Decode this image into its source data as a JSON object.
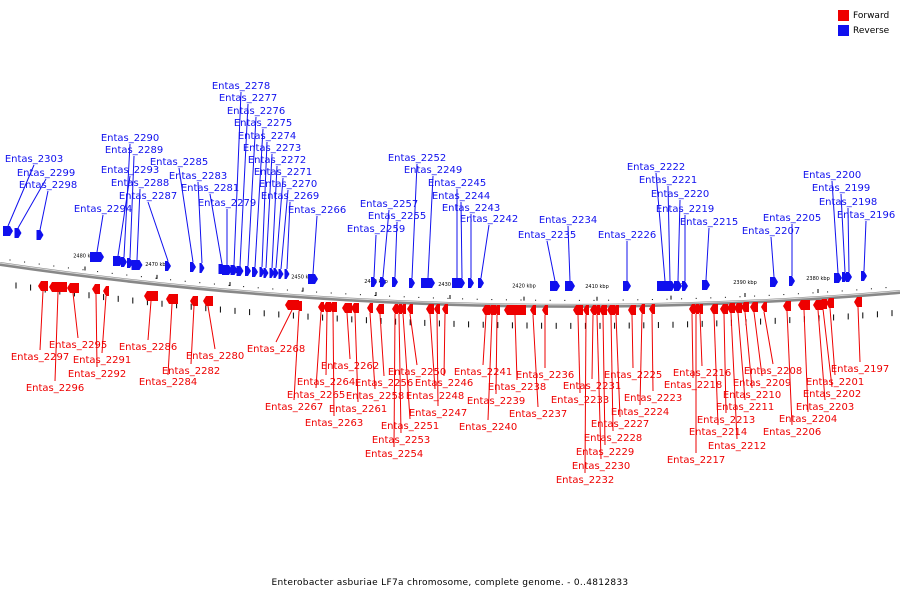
{
  "legend": {
    "forward": {
      "label": "Forward",
      "color": "#ee0000"
    },
    "reverse": {
      "label": "Reverse",
      "color": "#1010ee"
    }
  },
  "caption": "Enterobacter asburiae LF7a chromosome, complete genome. - 0..4812833",
  "axis_ticks": [
    "2480 kbp",
    "2470 kbp",
    "2460 kbp",
    "2450 kbp",
    "2440 kbp",
    "2430 kbp",
    "2420 kbp",
    "2410 kbp",
    "2400 kbp",
    "2390 kbp",
    "2380 kbp"
  ],
  "reverse_genes": [
    "Entas_2303",
    "Entas_2299",
    "Entas_2298",
    "Entas_2294",
    "Entas_2293",
    "Entas_2290",
    "Entas_2289",
    "Entas_2288",
    "Entas_2287",
    "Entas_2285",
    "Entas_2283",
    "Entas_2281",
    "Entas_2279",
    "Entas_2278",
    "Entas_2277",
    "Entas_2276",
    "Entas_2275",
    "Entas_2274",
    "Entas_2273",
    "Entas_2272",
    "Entas_2271",
    "Entas_2270",
    "Entas_2269",
    "Entas_2266",
    "Entas_2259",
    "Entas_2257",
    "Entas_2255",
    "Entas_2252",
    "Entas_2249",
    "Entas_2245",
    "Entas_2244",
    "Entas_2243",
    "Entas_2242",
    "Entas_2235",
    "Entas_2234",
    "Entas_2226",
    "Entas_2222",
    "Entas_2221",
    "Entas_2220",
    "Entas_2219",
    "Entas_2215",
    "Entas_2207",
    "Entas_2205",
    "Entas_2200",
    "Entas_2199",
    "Entas_2198",
    "Entas_2196"
  ],
  "forward_genes": [
    "Entas_2297",
    "Entas_2296",
    "Entas_2295",
    "Entas_2292",
    "Entas_2291",
    "Entas_2286",
    "Entas_2284",
    "Entas_2282",
    "Entas_2280",
    "Entas_2268",
    "Entas_2267",
    "Entas_2265",
    "Entas_2264",
    "Entas_2263",
    "Entas_2262",
    "Entas_2261",
    "Entas_2258",
    "Entas_2256",
    "Entas_2254",
    "Entas_2253",
    "Entas_2251",
    "Entas_2250",
    "Entas_2248",
    "Entas_2247",
    "Entas_2246",
    "Entas_2241",
    "Entas_2240",
    "Entas_2239",
    "Entas_2238",
    "Entas_2237",
    "Entas_2236",
    "Entas_2233",
    "Entas_2232",
    "Entas_2231",
    "Entas_2230",
    "Entas_2229",
    "Entas_2228",
    "Entas_2227",
    "Entas_2225",
    "Entas_2224",
    "Entas_2223",
    "Entas_2218",
    "Entas_2217",
    "Entas_2216",
    "Entas_2214",
    "Entas_2213",
    "Entas_2212",
    "Entas_2211",
    "Entas_2210",
    "Entas_2209",
    "Entas_2208",
    "Entas_2206",
    "Entas_2204",
    "Entas_2203",
    "Entas_2202",
    "Entas_2201",
    "Entas_2197"
  ]
}
